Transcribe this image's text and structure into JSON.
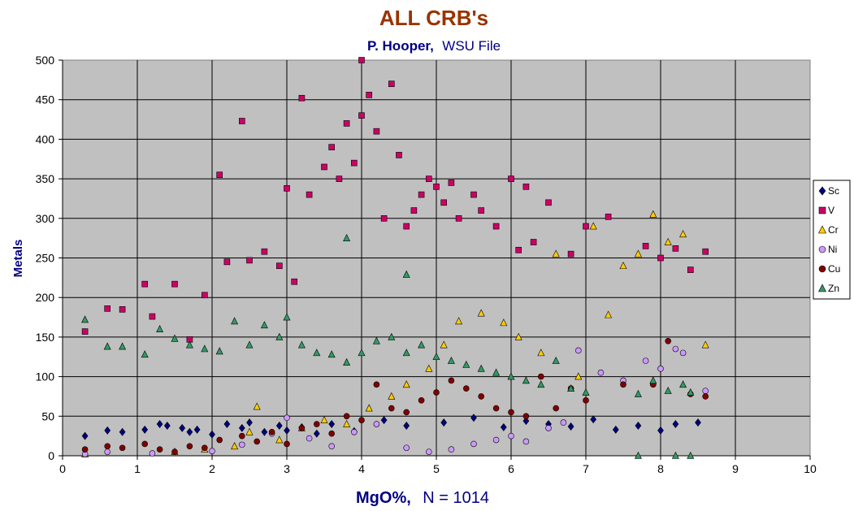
{
  "chart_data": {
    "type": "scatter",
    "title": "ALL CRB's",
    "subtitle_bold": "P. Hooper,",
    "subtitle_regular": "WSU File",
    "xlabel_bold": "MgO%,",
    "xlabel_regular": "N = 1014",
    "ylabel": "Metals",
    "xlim": [
      0,
      10
    ],
    "ylim": [
      0,
      500
    ],
    "xticks": [
      "0",
      "1",
      "2",
      "3",
      "4",
      "5",
      "6",
      "7",
      "8",
      "9",
      "10"
    ],
    "yticks": [
      "0",
      "50",
      "100",
      "150",
      "200",
      "250",
      "300",
      "350",
      "400",
      "450",
      "500"
    ],
    "grid": true,
    "plot_background": "#c0c0c0",
    "legend_position": "right",
    "series": [
      {
        "name": "Sc",
        "marker": "diamond",
        "color": "#000080",
        "points": [
          [
            0.3,
            25
          ],
          [
            0.6,
            32
          ],
          [
            0.8,
            30
          ],
          [
            1.1,
            33
          ],
          [
            1.3,
            40
          ],
          [
            1.4,
            38
          ],
          [
            1.6,
            35
          ],
          [
            1.7,
            30
          ],
          [
            1.8,
            33
          ],
          [
            2.0,
            27
          ],
          [
            2.2,
            40
          ],
          [
            2.4,
            35
          ],
          [
            2.5,
            42
          ],
          [
            2.7,
            30
          ],
          [
            2.9,
            38
          ],
          [
            3.0,
            32
          ],
          [
            3.2,
            36
          ],
          [
            3.4,
            28
          ],
          [
            3.6,
            40
          ],
          [
            3.9,
            31
          ],
          [
            4.3,
            45
          ],
          [
            4.6,
            38
          ],
          [
            5.1,
            42
          ],
          [
            5.5,
            48
          ],
          [
            5.9,
            36
          ],
          [
            6.2,
            44
          ],
          [
            6.5,
            40
          ],
          [
            6.8,
            37
          ],
          [
            7.1,
            46
          ],
          [
            7.4,
            33
          ],
          [
            7.7,
            38
          ],
          [
            8.0,
            32
          ],
          [
            8.2,
            40
          ],
          [
            8.5,
            42
          ]
        ]
      },
      {
        "name": "V",
        "marker": "square",
        "color": "#cc0066",
        "points": [
          [
            0.3,
            157
          ],
          [
            0.6,
            186
          ],
          [
            0.8,
            185
          ],
          [
            1.1,
            217
          ],
          [
            1.2,
            176
          ],
          [
            1.5,
            217
          ],
          [
            1.7,
            147
          ],
          [
            1.9,
            203
          ],
          [
            2.1,
            355
          ],
          [
            2.2,
            245
          ],
          [
            2.4,
            423
          ],
          [
            2.5,
            247
          ],
          [
            2.7,
            258
          ],
          [
            2.9,
            240
          ],
          [
            3.0,
            338
          ],
          [
            3.1,
            220
          ],
          [
            3.2,
            452
          ],
          [
            3.3,
            330
          ],
          [
            3.5,
            365
          ],
          [
            3.6,
            390
          ],
          [
            3.7,
            350
          ],
          [
            3.8,
            420
          ],
          [
            3.9,
            370
          ],
          [
            4.0,
            500
          ],
          [
            4.0,
            430
          ],
          [
            4.1,
            456
          ],
          [
            4.2,
            410
          ],
          [
            4.3,
            300
          ],
          [
            4.4,
            470
          ],
          [
            4.5,
            380
          ],
          [
            4.6,
            290
          ],
          [
            4.7,
            310
          ],
          [
            4.8,
            330
          ],
          [
            4.9,
            350
          ],
          [
            5.0,
            340
          ],
          [
            5.1,
            320
          ],
          [
            5.2,
            345
          ],
          [
            5.3,
            300
          ],
          [
            5.5,
            330
          ],
          [
            5.6,
            310
          ],
          [
            5.8,
            290
          ],
          [
            6.0,
            350
          ],
          [
            6.1,
            260
          ],
          [
            6.2,
            340
          ],
          [
            6.3,
            270
          ],
          [
            6.5,
            320
          ],
          [
            6.8,
            255
          ],
          [
            7.0,
            290
          ],
          [
            7.3,
            302
          ],
          [
            7.8,
            265
          ],
          [
            8.0,
            250
          ],
          [
            8.2,
            262
          ],
          [
            8.4,
            235
          ],
          [
            8.6,
            258
          ]
        ]
      },
      {
        "name": "Cr",
        "marker": "triangle",
        "color": "#ffcc00",
        "points": [
          [
            0.3,
            2
          ],
          [
            1.5,
            5
          ],
          [
            1.9,
            8
          ],
          [
            2.3,
            12
          ],
          [
            2.5,
            30
          ],
          [
            2.6,
            62
          ],
          [
            2.9,
            20
          ],
          [
            3.2,
            35
          ],
          [
            3.5,
            45
          ],
          [
            3.8,
            40
          ],
          [
            4.1,
            60
          ],
          [
            4.4,
            75
          ],
          [
            4.6,
            90
          ],
          [
            4.9,
            110
          ],
          [
            5.1,
            140
          ],
          [
            5.3,
            170
          ],
          [
            5.6,
            180
          ],
          [
            5.9,
            168
          ],
          [
            6.1,
            150
          ],
          [
            6.4,
            130
          ],
          [
            6.6,
            255
          ],
          [
            6.9,
            100
          ],
          [
            7.1,
            290
          ],
          [
            7.3,
            178
          ],
          [
            7.5,
            240
          ],
          [
            7.7,
            255
          ],
          [
            7.9,
            305
          ],
          [
            8.1,
            270
          ],
          [
            8.3,
            280
          ],
          [
            8.6,
            140
          ]
        ]
      },
      {
        "name": "Ni",
        "marker": "circle",
        "color": "#cc99ff",
        "points": [
          [
            0.3,
            2
          ],
          [
            0.6,
            5
          ],
          [
            1.2,
            3
          ],
          [
            2.0,
            6
          ],
          [
            2.4,
            14
          ],
          [
            2.8,
            28
          ],
          [
            3.0,
            48
          ],
          [
            3.3,
            22
          ],
          [
            3.6,
            12
          ],
          [
            3.9,
            30
          ],
          [
            4.2,
            40
          ],
          [
            4.6,
            10
          ],
          [
            4.9,
            5
          ],
          [
            5.2,
            8
          ],
          [
            5.5,
            15
          ],
          [
            5.8,
            20
          ],
          [
            6.0,
            25
          ],
          [
            6.2,
            18
          ],
          [
            6.5,
            35
          ],
          [
            6.7,
            42
          ],
          [
            6.9,
            133
          ],
          [
            7.2,
            105
          ],
          [
            7.5,
            95
          ],
          [
            7.8,
            120
          ],
          [
            8.0,
            110
          ],
          [
            8.2,
            135
          ],
          [
            8.3,
            130
          ],
          [
            8.6,
            82
          ]
        ]
      },
      {
        "name": "Cu",
        "marker": "circle",
        "color": "#800000",
        "points": [
          [
            0.3,
            8
          ],
          [
            0.6,
            12
          ],
          [
            0.8,
            10
          ],
          [
            1.1,
            15
          ],
          [
            1.3,
            8
          ],
          [
            1.5,
            5
          ],
          [
            1.7,
            12
          ],
          [
            1.9,
            10
          ],
          [
            2.1,
            20
          ],
          [
            2.4,
            25
          ],
          [
            2.6,
            18
          ],
          [
            2.8,
            30
          ],
          [
            3.0,
            15
          ],
          [
            3.2,
            35
          ],
          [
            3.4,
            40
          ],
          [
            3.6,
            28
          ],
          [
            3.8,
            50
          ],
          [
            4.0,
            45
          ],
          [
            4.2,
            90
          ],
          [
            4.4,
            60
          ],
          [
            4.6,
            55
          ],
          [
            4.8,
            70
          ],
          [
            5.0,
            80
          ],
          [
            5.2,
            95
          ],
          [
            5.4,
            85
          ],
          [
            5.6,
            75
          ],
          [
            5.8,
            60
          ],
          [
            6.0,
            55
          ],
          [
            6.2,
            50
          ],
          [
            6.4,
            100
          ],
          [
            6.6,
            60
          ],
          [
            6.8,
            85
          ],
          [
            7.0,
            70
          ],
          [
            7.5,
            90
          ],
          [
            7.9,
            90
          ],
          [
            8.1,
            145
          ],
          [
            8.4,
            78
          ],
          [
            8.6,
            75
          ]
        ]
      },
      {
        "name": "Zn",
        "marker": "triangle",
        "color": "#339966",
        "points": [
          [
            0.3,
            172
          ],
          [
            0.6,
            138
          ],
          [
            0.8,
            138
          ],
          [
            1.1,
            128
          ],
          [
            1.3,
            160
          ],
          [
            1.5,
            148
          ],
          [
            1.7,
            140
          ],
          [
            1.9,
            135
          ],
          [
            2.1,
            132
          ],
          [
            2.3,
            170
          ],
          [
            2.5,
            140
          ],
          [
            2.7,
            165
          ],
          [
            2.9,
            150
          ],
          [
            3.0,
            175
          ],
          [
            3.2,
            140
          ],
          [
            3.4,
            130
          ],
          [
            3.6,
            128
          ],
          [
            3.8,
            118
          ],
          [
            4.0,
            130
          ],
          [
            4.2,
            145
          ],
          [
            4.4,
            150
          ],
          [
            4.6,
            130
          ],
          [
            4.8,
            140
          ],
          [
            5.0,
            125
          ],
          [
            5.2,
            120
          ],
          [
            5.4,
            115
          ],
          [
            5.6,
            110
          ],
          [
            5.8,
            105
          ],
          [
            6.0,
            100
          ],
          [
            6.2,
            95
          ],
          [
            6.4,
            90
          ],
          [
            6.6,
            120
          ],
          [
            6.8,
            85
          ],
          [
            7.0,
            80
          ],
          [
            7.7,
            78
          ],
          [
            7.9,
            95
          ],
          [
            8.1,
            82
          ],
          [
            8.3,
            90
          ],
          [
            8.4,
            80
          ],
          [
            4.6,
            229
          ],
          [
            3.8,
            275
          ],
          [
            7.7,
            0
          ],
          [
            8.2,
            0
          ],
          [
            8.4,
            0
          ]
        ]
      }
    ]
  }
}
